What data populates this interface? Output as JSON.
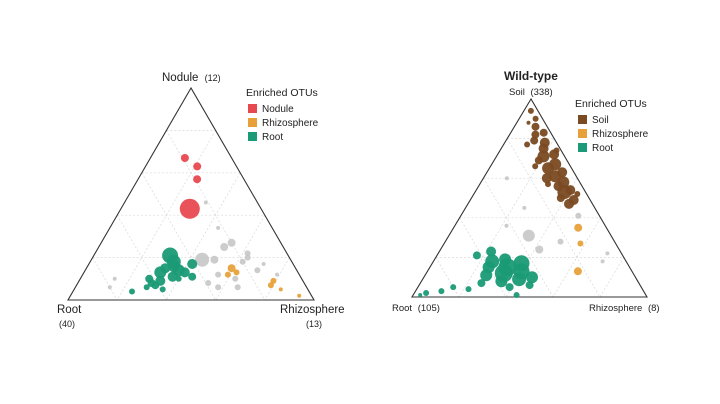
{
  "colors": {
    "nodule": "#e8494f",
    "rhizosphere": "#e8a13a",
    "root": "#1a9a76",
    "soil": "#7a4a22",
    "background_otu": "#c3c3c3",
    "frame": "#333333",
    "grid": "#d8d8d8"
  },
  "chart_data": [
    {
      "type": "scatter",
      "subtype": "ternary",
      "title": "",
      "vertices": {
        "top": {
          "name": "Nodule",
          "count": "(12)"
        },
        "left": {
          "name": "Root",
          "count": "(40)"
        },
        "right": {
          "name": "Rhizosphere",
          "count": "(13)"
        }
      },
      "legend": {
        "title": "Enriched OTUs",
        "position": "top-right",
        "entries": [
          {
            "label": "Nodule",
            "color": "nodule"
          },
          {
            "label": "Rhizosphere",
            "color": "rhizosphere"
          },
          {
            "label": "Root",
            "color": "root"
          }
        ]
      },
      "grid": true,
      "points": [
        {
          "g": "nodule",
          "a": 0.67,
          "b": 0.19,
          "c": 0.14,
          "s": 4
        },
        {
          "g": "nodule",
          "a": 0.63,
          "b": 0.16,
          "c": 0.21,
          "s": 4
        },
        {
          "g": "nodule",
          "a": 0.57,
          "b": 0.19,
          "c": 0.24,
          "s": 4
        },
        {
          "g": "nodule",
          "a": 0.43,
          "b": 0.29,
          "c": 0.28,
          "s": 10
        },
        {
          "g": "root",
          "a": 0.21,
          "b": 0.48,
          "c": 0.31,
          "s": 8
        },
        {
          "g": "root",
          "a": 0.18,
          "b": 0.48,
          "c": 0.34,
          "s": 7
        },
        {
          "g": "root",
          "a": 0.16,
          "b": 0.49,
          "c": 0.35,
          "s": 6
        },
        {
          "g": "root",
          "a": 0.13,
          "b": 0.56,
          "c": 0.31,
          "s": 6
        },
        {
          "g": "root",
          "a": 0.14,
          "b": 0.48,
          "c": 0.38,
          "s": 6
        },
        {
          "g": "root",
          "a": 0.17,
          "b": 0.41,
          "c": 0.42,
          "s": 5
        },
        {
          "g": "root",
          "a": 0.15,
          "b": 0.53,
          "c": 0.32,
          "s": 5
        },
        {
          "g": "root",
          "a": 0.13,
          "b": 0.46,
          "c": 0.41,
          "s": 5
        },
        {
          "g": "root",
          "a": 0.11,
          "b": 0.52,
          "c": 0.37,
          "s": 5
        },
        {
          "g": "root",
          "a": 0.09,
          "b": 0.58,
          "c": 0.33,
          "s": 5
        },
        {
          "g": "root",
          "a": 0.08,
          "b": 0.62,
          "c": 0.3,
          "s": 4
        },
        {
          "g": "root",
          "a": 0.11,
          "b": 0.44,
          "c": 0.45,
          "s": 4
        },
        {
          "g": "root",
          "a": 0.1,
          "b": 0.62,
          "c": 0.28,
          "s": 4
        },
        {
          "g": "root",
          "a": 0.07,
          "b": 0.61,
          "c": 0.32,
          "s": 4
        },
        {
          "g": "root",
          "a": 0.05,
          "b": 0.59,
          "c": 0.36,
          "s": 3
        },
        {
          "g": "root",
          "a": 0.06,
          "b": 0.65,
          "c": 0.29,
          "s": 3
        },
        {
          "g": "root",
          "a": 0.04,
          "b": 0.72,
          "c": 0.24,
          "s": 3
        },
        {
          "g": "root",
          "a": 0.1,
          "b": 0.5,
          "c": 0.4,
          "s": 3
        },
        {
          "g": "rhizosphere",
          "a": 0.15,
          "b": 0.26,
          "c": 0.59,
          "s": 4
        },
        {
          "g": "rhizosphere",
          "a": 0.13,
          "b": 0.25,
          "c": 0.62,
          "s": 3
        },
        {
          "g": "rhizosphere",
          "a": 0.12,
          "b": 0.29,
          "c": 0.59,
          "s": 3
        },
        {
          "g": "rhizosphere",
          "a": 0.09,
          "b": 0.12,
          "c": 0.79,
          "s": 3
        },
        {
          "g": "rhizosphere",
          "a": 0.07,
          "b": 0.14,
          "c": 0.79,
          "s": 3
        },
        {
          "g": "rhizosphere",
          "a": 0.05,
          "b": 0.11,
          "c": 0.84,
          "s": 2
        },
        {
          "g": "rhizosphere",
          "a": 0.02,
          "b": 0.05,
          "c": 0.93,
          "s": 2
        },
        {
          "g": "background_otu",
          "a": 0.19,
          "b": 0.36,
          "c": 0.45,
          "s": 7
        },
        {
          "g": "background_otu",
          "a": 0.27,
          "b": 0.2,
          "c": 0.53,
          "s": 4
        },
        {
          "g": "background_otu",
          "a": 0.25,
          "b": 0.24,
          "c": 0.51,
          "s": 4
        },
        {
          "g": "background_otu",
          "a": 0.19,
          "b": 0.31,
          "c": 0.5,
          "s": 4
        },
        {
          "g": "background_otu",
          "a": 0.2,
          "b": 0.17,
          "c": 0.63,
          "s": 3
        },
        {
          "g": "background_otu",
          "a": 0.18,
          "b": 0.2,
          "c": 0.62,
          "s": 3
        },
        {
          "g": "background_otu",
          "a": 0.12,
          "b": 0.33,
          "c": 0.55,
          "s": 3
        },
        {
          "g": "background_otu",
          "a": 0.1,
          "b": 0.27,
          "c": 0.63,
          "s": 3
        },
        {
          "g": "background_otu",
          "a": 0.08,
          "b": 0.39,
          "c": 0.53,
          "s": 3
        },
        {
          "g": "background_otu",
          "a": 0.06,
          "b": 0.28,
          "c": 0.66,
          "s": 3
        },
        {
          "g": "background_otu",
          "a": 0.06,
          "b": 0.36,
          "c": 0.58,
          "s": 3
        },
        {
          "g": "background_otu",
          "a": 0.14,
          "b": 0.16,
          "c": 0.7,
          "s": 3
        },
        {
          "g": "background_otu",
          "a": 0.22,
          "b": 0.16,
          "c": 0.62,
          "s": 3
        },
        {
          "g": "background_otu",
          "a": 0.17,
          "b": 0.12,
          "c": 0.71,
          "s": 2
        },
        {
          "g": "background_otu",
          "a": 0.12,
          "b": 0.09,
          "c": 0.79,
          "s": 2
        },
        {
          "g": "background_otu",
          "a": 0.1,
          "b": 0.76,
          "c": 0.14,
          "s": 2
        },
        {
          "g": "background_otu",
          "a": 0.06,
          "b": 0.8,
          "c": 0.14,
          "s": 2
        },
        {
          "g": "background_otu",
          "a": 0.46,
          "b": 0.21,
          "c": 0.33,
          "s": 2
        },
        {
          "g": "background_otu",
          "a": 0.34,
          "b": 0.22,
          "c": 0.44,
          "s": 2
        }
      ]
    },
    {
      "type": "scatter",
      "subtype": "ternary",
      "title": "Wild-type",
      "vertices": {
        "top": {
          "name": "Soil",
          "count": "(338)"
        },
        "left": {
          "name": "Root",
          "count": "(105)"
        },
        "right": {
          "name": "Rhizosphere",
          "count": "(8)"
        }
      },
      "legend": {
        "title": "Enriched OTUs",
        "position": "top-right",
        "entries": [
          {
            "label": "Soil",
            "color": "soil"
          },
          {
            "label": "Rhizosphere",
            "color": "rhizosphere"
          },
          {
            "label": "Root",
            "color": "root"
          }
        ]
      },
      "grid": true,
      "points": [
        {
          "g": "soil",
          "a": 0.94,
          "b": 0.03,
          "c": 0.03,
          "s": 3
        },
        {
          "g": "soil",
          "a": 0.9,
          "b": 0.03,
          "c": 0.07,
          "s": 3
        },
        {
          "g": "soil",
          "a": 0.86,
          "b": 0.05,
          "c": 0.09,
          "s": 4
        },
        {
          "g": "soil",
          "a": 0.82,
          "b": 0.07,
          "c": 0.11,
          "s": 4
        },
        {
          "g": "soil",
          "a": 0.83,
          "b": 0.03,
          "c": 0.14,
          "s": 4
        },
        {
          "g": "soil",
          "a": 0.78,
          "b": 0.05,
          "c": 0.17,
          "s": 5
        },
        {
          "g": "soil",
          "a": 0.79,
          "b": 0.09,
          "c": 0.12,
          "s": 4
        },
        {
          "g": "soil",
          "a": 0.75,
          "b": 0.07,
          "c": 0.18,
          "s": 5
        },
        {
          "g": "soil",
          "a": 0.72,
          "b": 0.04,
          "c": 0.24,
          "s": 5
        },
        {
          "g": "soil",
          "a": 0.71,
          "b": 0.09,
          "c": 0.2,
          "s": 6
        },
        {
          "g": "soil",
          "a": 0.69,
          "b": 0.12,
          "c": 0.19,
          "s": 4
        },
        {
          "g": "soil",
          "a": 0.67,
          "b": 0.06,
          "c": 0.27,
          "s": 6
        },
        {
          "g": "soil",
          "a": 0.65,
          "b": 0.1,
          "c": 0.25,
          "s": 6
        },
        {
          "g": "soil",
          "a": 0.63,
          "b": 0.05,
          "c": 0.32,
          "s": 5
        },
        {
          "g": "soil",
          "a": 0.61,
          "b": 0.09,
          "c": 0.3,
          "s": 6
        },
        {
          "g": "soil",
          "a": 0.6,
          "b": 0.13,
          "c": 0.27,
          "s": 5
        },
        {
          "g": "soil",
          "a": 0.58,
          "b": 0.07,
          "c": 0.35,
          "s": 6
        },
        {
          "g": "soil",
          "a": 0.56,
          "b": 0.1,
          "c": 0.34,
          "s": 5
        },
        {
          "g": "soil",
          "a": 0.54,
          "b": 0.06,
          "c": 0.4,
          "s": 5
        },
        {
          "g": "soil",
          "a": 0.53,
          "b": 0.09,
          "c": 0.38,
          "s": 7
        },
        {
          "g": "soil",
          "a": 0.5,
          "b": 0.12,
          "c": 0.38,
          "s": 4
        },
        {
          "g": "soil",
          "a": 0.49,
          "b": 0.07,
          "c": 0.44,
          "s": 5
        },
        {
          "g": "soil",
          "a": 0.47,
          "b": 0.1,
          "c": 0.43,
          "s": 5
        },
        {
          "g": "soil",
          "a": 0.77,
          "b": 0.13,
          "c": 0.1,
          "s": 3
        },
        {
          "g": "soil",
          "a": 0.66,
          "b": 0.15,
          "c": 0.19,
          "s": 3
        },
        {
          "g": "soil",
          "a": 0.88,
          "b": 0.07,
          "c": 0.05,
          "s": 2
        },
        {
          "g": "soil",
          "a": 0.74,
          "b": 0.02,
          "c": 0.24,
          "s": 3
        },
        {
          "g": "soil",
          "a": 0.57,
          "b": 0.14,
          "c": 0.29,
          "s": 3
        },
        {
          "g": "soil",
          "a": 0.52,
          "b": 0.04,
          "c": 0.44,
          "s": 3
        },
        {
          "g": "root",
          "a": 0.23,
          "b": 0.55,
          "c": 0.22,
          "s": 5
        },
        {
          "g": "root",
          "a": 0.21,
          "b": 0.62,
          "c": 0.17,
          "s": 4
        },
        {
          "g": "root",
          "a": 0.19,
          "b": 0.51,
          "c": 0.3,
          "s": 6
        },
        {
          "g": "root",
          "a": 0.18,
          "b": 0.57,
          "c": 0.25,
          "s": 7
        },
        {
          "g": "root",
          "a": 0.17,
          "b": 0.45,
          "c": 0.38,
          "s": 8
        },
        {
          "g": "root",
          "a": 0.15,
          "b": 0.52,
          "c": 0.33,
          "s": 9
        },
        {
          "g": "root",
          "a": 0.15,
          "b": 0.6,
          "c": 0.25,
          "s": 6
        },
        {
          "g": "root",
          "a": 0.13,
          "b": 0.47,
          "c": 0.4,
          "s": 8
        },
        {
          "g": "root",
          "a": 0.12,
          "b": 0.55,
          "c": 0.33,
          "s": 9
        },
        {
          "g": "root",
          "a": 0.11,
          "b": 0.63,
          "c": 0.26,
          "s": 6
        },
        {
          "g": "root",
          "a": 0.1,
          "b": 0.44,
          "c": 0.46,
          "s": 6
        },
        {
          "g": "root",
          "a": 0.09,
          "b": 0.5,
          "c": 0.41,
          "s": 7
        },
        {
          "g": "root",
          "a": 0.08,
          "b": 0.58,
          "c": 0.34,
          "s": 6
        },
        {
          "g": "root",
          "a": 0.07,
          "b": 0.67,
          "c": 0.26,
          "s": 4
        },
        {
          "g": "root",
          "a": 0.06,
          "b": 0.47,
          "c": 0.47,
          "s": 4
        },
        {
          "g": "root",
          "a": 0.05,
          "b": 0.56,
          "c": 0.39,
          "s": 4
        },
        {
          "g": "root",
          "a": 0.04,
          "b": 0.74,
          "c": 0.22,
          "s": 3
        },
        {
          "g": "root",
          "a": 0.03,
          "b": 0.86,
          "c": 0.11,
          "s": 3
        },
        {
          "g": "root",
          "a": 0.02,
          "b": 0.93,
          "c": 0.05,
          "s": 3
        },
        {
          "g": "root",
          "a": 0.05,
          "b": 0.8,
          "c": 0.15,
          "s": 3
        },
        {
          "g": "root",
          "a": 0.01,
          "b": 0.96,
          "c": 0.03,
          "s": 2
        },
        {
          "g": "root",
          "a": 0.01,
          "b": 0.55,
          "c": 0.44,
          "s": 3
        },
        {
          "g": "rhizosphere",
          "a": 0.35,
          "b": 0.12,
          "c": 0.53,
          "s": 4
        },
        {
          "g": "rhizosphere",
          "a": 0.27,
          "b": 0.15,
          "c": 0.58,
          "s": 3
        },
        {
          "g": "rhizosphere",
          "a": 0.13,
          "b": 0.23,
          "c": 0.64,
          "s": 4
        },
        {
          "g": "background_otu",
          "a": 0.41,
          "b": 0.09,
          "c": 0.5,
          "s": 3
        },
        {
          "g": "background_otu",
          "a": 0.31,
          "b": 0.35,
          "c": 0.34,
          "s": 6
        },
        {
          "g": "background_otu",
          "a": 0.24,
          "b": 0.34,
          "c": 0.42,
          "s": 4
        },
        {
          "g": "background_otu",
          "a": 0.28,
          "b": 0.23,
          "c": 0.49,
          "s": 3
        },
        {
          "g": "background_otu",
          "a": 0.18,
          "b": 0.1,
          "c": 0.72,
          "s": 2
        },
        {
          "g": "background_otu",
          "a": 0.22,
          "b": 0.06,
          "c": 0.72,
          "s": 2
        },
        {
          "g": "background_otu",
          "a": 0.45,
          "b": 0.3,
          "c": 0.25,
          "s": 2
        },
        {
          "g": "background_otu",
          "a": 0.6,
          "b": 0.3,
          "c": 0.1,
          "s": 2
        },
        {
          "g": "background_otu",
          "a": 0.36,
          "b": 0.42,
          "c": 0.22,
          "s": 2
        }
      ]
    }
  ]
}
